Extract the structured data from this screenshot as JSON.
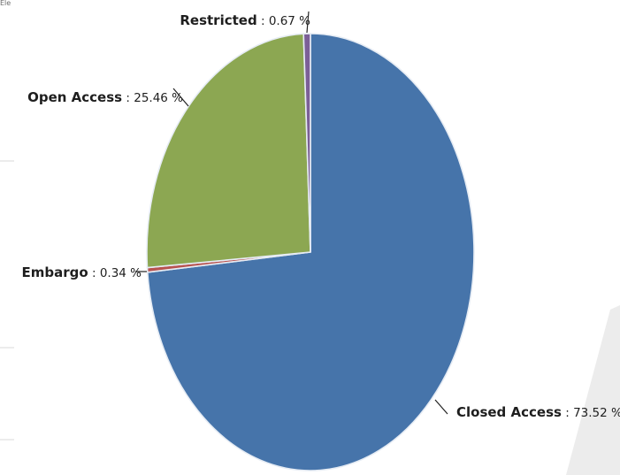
{
  "corner_text": "Ele",
  "chart_data": {
    "type": "pie",
    "title": "",
    "start_angle_deg": 0,
    "clockwise": true,
    "slices": [
      {
        "label": "Closed Access",
        "value": 73.52,
        "display": "Closed Access : 73.52 %",
        "color": "#4674aa"
      },
      {
        "label": "Embargo",
        "value": 0.34,
        "display": "Embargo : 0.34 %",
        "color": "#b8524f"
      },
      {
        "label": "Open Access",
        "value": 25.46,
        "display": "Open Access : 25.46 %",
        "color": "#8ca752"
      },
      {
        "label": "Restricted",
        "value": 0.67,
        "display": "Restricted : 0.67 %",
        "color": "#7b5f97"
      }
    ],
    "colors": {
      "slice_border": "#e6ecf4",
      "leader_line": "#222222",
      "background_shape": "#ececec",
      "gridline": "#d9d9d9"
    }
  }
}
